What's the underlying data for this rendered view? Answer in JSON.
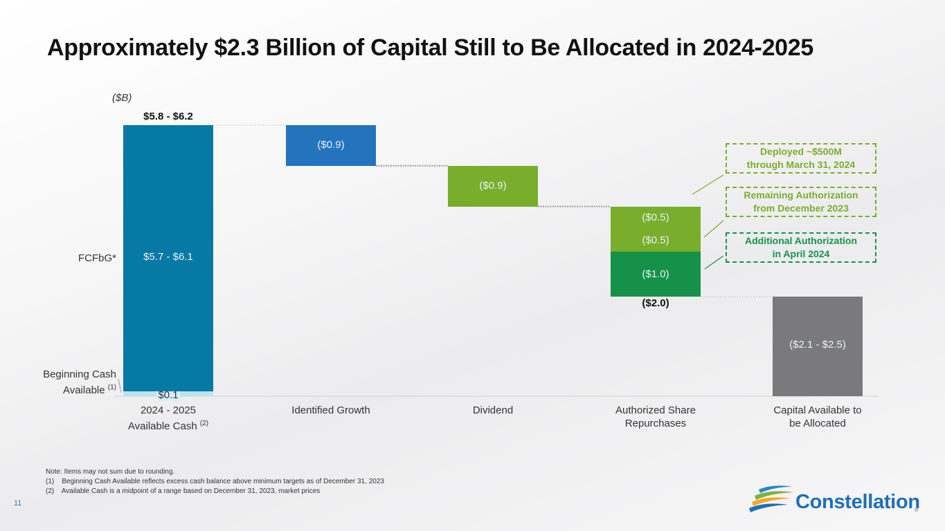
{
  "title": "Approximately $2.3 Billion of Capital Still to Be Allocated in 2024-2025",
  "unit": "($B)",
  "chart_data": {
    "type": "waterfall",
    "ylim": [
      0,
      6.2
    ],
    "categories": [
      {
        "line1": "2024 - 2025",
        "line2": "Available Cash ",
        "sup": "(2)"
      },
      {
        "line1": "Identified Growth",
        "line2": ""
      },
      {
        "line1": "Dividend",
        "line2": ""
      },
      {
        "line1": "Authorized Share",
        "line2": "Repurchases"
      },
      {
        "line1": "Capital Available to",
        "line2": "be Allocated"
      }
    ],
    "segments": [
      {
        "category": 0,
        "name": "Beginning Cash Available",
        "start": 0,
        "end": 0.1,
        "label": "$0.1",
        "color": "#bde3f2"
      },
      {
        "category": 0,
        "name": "FCFbG",
        "start": 0.1,
        "end": 6.0,
        "label": "$5.7 - $6.1",
        "color": "#0779a5"
      },
      {
        "category": 1,
        "name": "Identified Growth",
        "start": 6.0,
        "end": 5.1,
        "label": "($0.9)",
        "color": "#2474bd"
      },
      {
        "category": 2,
        "name": "Dividend",
        "start": 5.1,
        "end": 4.2,
        "label": "($0.9)",
        "color": "#79ad2c"
      },
      {
        "category": 3,
        "name": "Deployed through March 31, 2024",
        "start": 4.2,
        "end": 3.7,
        "label": "($0.5)",
        "color": "#79ad2c"
      },
      {
        "category": 3,
        "name": "Remaining Authorization",
        "start": 3.7,
        "end": 3.2,
        "label": "($0.5)",
        "color": "#79ad2c"
      },
      {
        "category": 3,
        "name": "Additional Authorization",
        "start": 3.2,
        "end": 2.2,
        "label": "($1.0)",
        "color": "#16914a"
      },
      {
        "category": 4,
        "name": "Capital Available to be Allocated",
        "start": 0,
        "end": 2.2,
        "label": "($2.1 - $2.5)",
        "color": "#7a7a7c"
      }
    ],
    "top_label": "$5.8 - $6.2",
    "repurchase_total_label": "($2.0)"
  },
  "side_labels": {
    "fcfbg": "FCFbG*",
    "beginning_cash": "Beginning Cash",
    "available": "Available ",
    "available_sup": "(1)"
  },
  "callouts": [
    {
      "line1": "Deployed ~$500M",
      "line2": "through March 31, 2024",
      "color": "#79ad2c"
    },
    {
      "line1": "Remaining Authorization",
      "line2": "from December 2023",
      "color": "#79ad2c"
    },
    {
      "line1": "Additional Authorization",
      "line2": "in April 2024",
      "color": "#16914a"
    }
  ],
  "notes": [
    "Note: Items may not sum due to rounding.",
    "(1)    Beginning Cash Available reflects excess cash balance above minimum targets as of December 31, 2023",
    "(2)    Available Cash is a midpoint of a range based on December 31, 2023, market prices"
  ],
  "page_number": "11",
  "logo": {
    "text": "Constellation",
    "reg": "®"
  }
}
